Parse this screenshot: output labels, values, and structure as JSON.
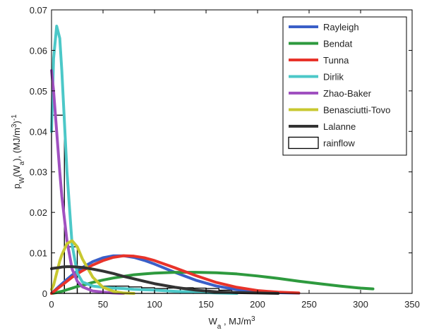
{
  "chart_data": {
    "type": "line",
    "x_label": [
      {
        "text": "W"
      },
      {
        "text": "a",
        "pos": "sub"
      },
      {
        "text": " , MJ/m"
      },
      {
        "text": "3",
        "pos": "sup"
      }
    ],
    "y_label": [
      {
        "text": "p"
      },
      {
        "text": "W",
        "pos": "sub"
      },
      {
        "text": "(W"
      },
      {
        "text": "a",
        "pos": "sub"
      },
      {
        "text": "),  (MJ/m"
      },
      {
        "text": "3",
        "pos": "sup"
      },
      {
        "text": ")"
      },
      {
        "text": "-1",
        "pos": "sup"
      }
    ],
    "xlim": [
      0,
      350
    ],
    "ylim": [
      0,
      0.07
    ],
    "xticks": [
      0,
      50,
      100,
      150,
      200,
      250,
      300,
      350
    ],
    "yticks": [
      0,
      0.01,
      0.02,
      0.03,
      0.04,
      0.05,
      0.06,
      0.07
    ],
    "legend": "top-right",
    "x": [
      0,
      2,
      5,
      8,
      10,
      15,
      20,
      25,
      30,
      40,
      50,
      60,
      70,
      80,
      90,
      100,
      120,
      140,
      160,
      180,
      200,
      220,
      240,
      260,
      280,
      300,
      312
    ],
    "series": [
      {
        "name": "Rayleigh",
        "color": "#3a5fc8",
        "values": [
          0,
          0.00047,
          0.00118,
          0.00188,
          0.00234,
          0.00346,
          0.00452,
          0.0055,
          0.00638,
          0.00783,
          0.0088,
          0.00927,
          0.00928,
          0.00888,
          0.00816,
          0.00724,
          0.00517,
          0.00326,
          0.00182,
          0.00092,
          0.00042,
          0.00017,
          6e-05,
          null,
          null,
          null,
          null
        ]
      },
      {
        "name": "Bendat",
        "color": "#2e9a3e",
        "values": [
          0,
          5e-05,
          0.0002,
          0.0004,
          0.0005,
          0.0009,
          0.0013,
          0.0017,
          0.002,
          0.0027,
          0.0033,
          0.0038,
          0.0042,
          0.0046,
          0.0048,
          0.005,
          0.0052,
          0.0052,
          0.0051,
          0.0048,
          0.0043,
          0.0037,
          0.003,
          0.0024,
          0.0018,
          0.0013,
          0.0011
        ]
      },
      {
        "name": "Tunna",
        "color": "#e8332a",
        "values": [
          0,
          0.0004,
          0.001,
          0.0016,
          0.002,
          0.003,
          0.004,
          0.0048,
          0.0056,
          0.007,
          0.0081,
          0.0089,
          0.0093,
          0.0092,
          0.0088,
          0.0081,
          0.0063,
          0.0044,
          0.0027,
          0.0015,
          0.0007,
          0.0003,
          0.0001,
          null,
          null,
          null,
          null
        ]
      },
      {
        "name": "Dirlik",
        "color": "#4cc8c8",
        "values": [
          0.04,
          0.058,
          0.066,
          0.063,
          0.055,
          0.03,
          0.012,
          0.005,
          0.0028,
          0.0018,
          0.0015,
          0.0013,
          0.0012,
          0.001,
          0.0009,
          0.0008,
          0.0005,
          0.0003,
          0.0001,
          0,
          null,
          null,
          null,
          null,
          null,
          null,
          null
        ]
      },
      {
        "name": "Zhao-Baker",
        "color": "#a050c0",
        "values": [
          0.055,
          0.05,
          0.04,
          0.03,
          0.024,
          0.013,
          0.006,
          0.003,
          0.0016,
          0.0006,
          0.0003,
          0.0001,
          0,
          null,
          null,
          null,
          null,
          null,
          null,
          null,
          null,
          null,
          null,
          null,
          null,
          null,
          null
        ]
      },
      {
        "name": "Benasciutti-Tovo",
        "color": "#c8c830",
        "values": [
          0.001,
          0.002,
          0.005,
          0.008,
          0.0095,
          0.0123,
          0.013,
          0.0115,
          0.0085,
          0.004,
          0.0015,
          0.0005,
          0.0001,
          0,
          null,
          null,
          null,
          null,
          null,
          null,
          null,
          null,
          null,
          null,
          null,
          null,
          null
        ]
      },
      {
        "name": "Lalanne",
        "color": "#333333",
        "values": [
          0.0061,
          0.0062,
          0.0063,
          0.0064,
          0.0065,
          0.0066,
          0.0066,
          0.0065,
          0.0064,
          0.006,
          0.0055,
          0.0049,
          0.0042,
          0.0036,
          0.003,
          0.0024,
          0.0015,
          0.0008,
          0.0004,
          0.0002,
          0.0001,
          0,
          null,
          null,
          null,
          null,
          null
        ]
      }
    ],
    "histogram": {
      "name": "rainflow",
      "color": "#ffffff",
      "edgecolor": "#000000",
      "bins": [
        0,
        12.5,
        25,
        37.5,
        50,
        62.5,
        75,
        87.5,
        100,
        112.5,
        125,
        137.5,
        150,
        162.5,
        175
      ],
      "values": [
        0.044,
        0.0115,
        0.0022,
        0.0016,
        0.0018,
        0.0018,
        0.0016,
        0.0014,
        0.0012,
        0.0013,
        0.0014,
        0.0013,
        0.0012,
        0.0008
      ]
    }
  }
}
